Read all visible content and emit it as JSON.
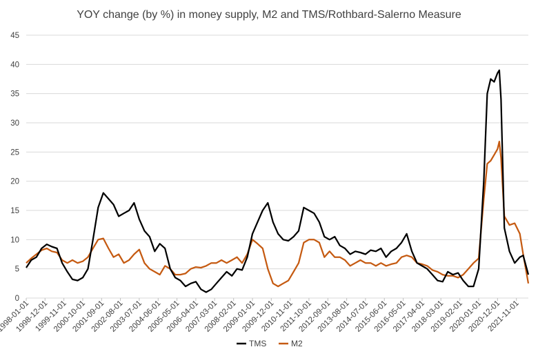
{
  "chart_data": {
    "type": "line",
    "title": "YOY change (by %) in money supply, M2 and TMS/Rothbard-Salerno Measure",
    "xlabel": "",
    "ylabel": "",
    "ylim": [
      0,
      45
    ],
    "y_ticks": [
      "0",
      "5",
      "10",
      "15",
      "20",
      "25",
      "30",
      "35",
      "40",
      "45"
    ],
    "x_range": [
      "1998-01-01",
      "2022-06-01"
    ],
    "x_tick_labels": [
      "1998-01-01",
      "1998-12-01",
      "1999-11-01",
      "2000-10-01",
      "2001-09-01",
      "2002-08-01",
      "2003-07-01",
      "2004-06-01",
      "2005-05-01",
      "2006-04-01",
      "2007-03-01",
      "2008-02-01",
      "2009-01-01",
      "2009-12-01",
      "2010-11-01",
      "2011-10-01",
      "2012-09-01",
      "2013-08-01",
      "2014-07-01",
      "2015-06-01",
      "2016-05-01",
      "2017-04-01",
      "2018-03-01",
      "2019-02-01",
      "2020-01-01",
      "2020-12-01",
      "2021-11-01"
    ],
    "grid": "horizontal",
    "legend_position": "bottom",
    "series": [
      {
        "name": "TMS",
        "color": "#000000",
        "points": [
          [
            "1998-01-01",
            5.2
          ],
          [
            "1998-04-01",
            6.5
          ],
          [
            "1998-07-01",
            7.0
          ],
          [
            "1998-10-01",
            8.5
          ],
          [
            "1999-01-01",
            9.2
          ],
          [
            "1999-04-01",
            8.8
          ],
          [
            "1999-07-01",
            8.5
          ],
          [
            "1999-10-01",
            6.0
          ],
          [
            "2000-01-01",
            4.5
          ],
          [
            "2000-04-01",
            3.2
          ],
          [
            "2000-07-01",
            3.0
          ],
          [
            "2000-10-01",
            3.5
          ],
          [
            "2001-01-01",
            5.0
          ],
          [
            "2001-04-01",
            10.0
          ],
          [
            "2001-07-01",
            15.5
          ],
          [
            "2001-10-01",
            18.0
          ],
          [
            "2002-01-01",
            17.0
          ],
          [
            "2002-04-01",
            16.0
          ],
          [
            "2002-07-01",
            14.0
          ],
          [
            "2002-10-01",
            14.5
          ],
          [
            "2003-01-01",
            15.0
          ],
          [
            "2003-04-01",
            16.3
          ],
          [
            "2003-07-01",
            13.5
          ],
          [
            "2003-10-01",
            11.5
          ],
          [
            "2004-01-01",
            10.5
          ],
          [
            "2004-04-01",
            8.0
          ],
          [
            "2004-07-01",
            9.3
          ],
          [
            "2004-10-01",
            8.5
          ],
          [
            "2005-01-01",
            5.0
          ],
          [
            "2005-04-01",
            3.5
          ],
          [
            "2005-07-01",
            3.0
          ],
          [
            "2005-10-01",
            2.0
          ],
          [
            "2006-01-01",
            2.5
          ],
          [
            "2006-04-01",
            2.8
          ],
          [
            "2006-07-01",
            1.5
          ],
          [
            "2006-10-01",
            1.0
          ],
          [
            "2007-01-01",
            1.5
          ],
          [
            "2007-04-01",
            2.5
          ],
          [
            "2007-07-01",
            3.5
          ],
          [
            "2007-10-01",
            4.5
          ],
          [
            "2008-01-01",
            3.8
          ],
          [
            "2008-04-01",
            5.0
          ],
          [
            "2008-07-01",
            4.8
          ],
          [
            "2008-10-01",
            7.0
          ],
          [
            "2009-01-01",
            11.0
          ],
          [
            "2009-04-01",
            13.0
          ],
          [
            "2009-07-01",
            15.0
          ],
          [
            "2009-10-01",
            16.3
          ],
          [
            "2010-01-01",
            13.0
          ],
          [
            "2010-04-01",
            11.0
          ],
          [
            "2010-07-01",
            10.0
          ],
          [
            "2010-10-01",
            9.8
          ],
          [
            "2011-01-01",
            10.5
          ],
          [
            "2011-04-01",
            11.5
          ],
          [
            "2011-07-01",
            15.5
          ],
          [
            "2011-10-01",
            15.0
          ],
          [
            "2012-01-01",
            14.5
          ],
          [
            "2012-04-01",
            13.0
          ],
          [
            "2012-07-01",
            10.5
          ],
          [
            "2012-10-01",
            10.0
          ],
          [
            "2013-01-01",
            10.5
          ],
          [
            "2013-04-01",
            9.0
          ],
          [
            "2013-07-01",
            8.5
          ],
          [
            "2013-10-01",
            7.5
          ],
          [
            "2014-01-01",
            8.0
          ],
          [
            "2014-04-01",
            7.8
          ],
          [
            "2014-07-01",
            7.5
          ],
          [
            "2014-10-01",
            8.2
          ],
          [
            "2015-01-01",
            8.0
          ],
          [
            "2015-04-01",
            8.5
          ],
          [
            "2015-07-01",
            7.0
          ],
          [
            "2015-10-01",
            8.0
          ],
          [
            "2016-01-01",
            8.5
          ],
          [
            "2016-04-01",
            9.5
          ],
          [
            "2016-07-01",
            11.0
          ],
          [
            "2016-10-01",
            8.0
          ],
          [
            "2017-01-01",
            6.0
          ],
          [
            "2017-04-01",
            5.5
          ],
          [
            "2017-07-01",
            5.0
          ],
          [
            "2017-10-01",
            4.0
          ],
          [
            "2018-01-01",
            3.0
          ],
          [
            "2018-04-01",
            2.8
          ],
          [
            "2018-07-01",
            4.5
          ],
          [
            "2018-10-01",
            4.0
          ],
          [
            "2019-01-01",
            4.3
          ],
          [
            "2019-04-01",
            3.0
          ],
          [
            "2019-07-01",
            2.0
          ],
          [
            "2019-10-01",
            2.0
          ],
          [
            "2020-01-01",
            5.0
          ],
          [
            "2020-04-01",
            20.0
          ],
          [
            "2020-06-01",
            35.0
          ],
          [
            "2020-08-01",
            37.5
          ],
          [
            "2020-10-01",
            37.0
          ],
          [
            "2020-12-01",
            38.5
          ],
          [
            "2021-01-01",
            39.0
          ],
          [
            "2021-02-01",
            34.0
          ],
          [
            "2021-04-01",
            12.0
          ],
          [
            "2021-07-01",
            8.0
          ],
          [
            "2021-10-01",
            6.0
          ],
          [
            "2022-01-01",
            7.0
          ],
          [
            "2022-03-01",
            7.3
          ],
          [
            "2022-06-01",
            4.0
          ]
        ]
      },
      {
        "name": "M2",
        "color": "#c55a11",
        "points": [
          [
            "1998-01-01",
            6.0
          ],
          [
            "1998-04-01",
            6.8
          ],
          [
            "1998-07-01",
            7.5
          ],
          [
            "1998-10-01",
            8.2
          ],
          [
            "1999-01-01",
            8.5
          ],
          [
            "1999-04-01",
            8.0
          ],
          [
            "1999-07-01",
            7.8
          ],
          [
            "1999-10-01",
            6.5
          ],
          [
            "2000-01-01",
            6.0
          ],
          [
            "2000-04-01",
            6.5
          ],
          [
            "2000-07-01",
            6.0
          ],
          [
            "2000-10-01",
            6.3
          ],
          [
            "2001-01-01",
            7.0
          ],
          [
            "2001-04-01",
            8.5
          ],
          [
            "2001-07-01",
            10.0
          ],
          [
            "2001-10-01",
            10.2
          ],
          [
            "2002-01-01",
            8.5
          ],
          [
            "2002-04-01",
            7.0
          ],
          [
            "2002-07-01",
            7.5
          ],
          [
            "2002-10-01",
            6.0
          ],
          [
            "2003-01-01",
            6.5
          ],
          [
            "2003-04-01",
            7.5
          ],
          [
            "2003-07-01",
            8.3
          ],
          [
            "2003-10-01",
            6.0
          ],
          [
            "2004-01-01",
            5.0
          ],
          [
            "2004-04-01",
            4.5
          ],
          [
            "2004-07-01",
            4.0
          ],
          [
            "2004-10-01",
            5.5
          ],
          [
            "2005-01-01",
            5.0
          ],
          [
            "2005-04-01",
            4.0
          ],
          [
            "2005-07-01",
            4.0
          ],
          [
            "2005-10-01",
            4.2
          ],
          [
            "2006-01-01",
            5.0
          ],
          [
            "2006-04-01",
            5.3
          ],
          [
            "2006-07-01",
            5.2
          ],
          [
            "2006-10-01",
            5.5
          ],
          [
            "2007-01-01",
            6.0
          ],
          [
            "2007-04-01",
            6.0
          ],
          [
            "2007-07-01",
            6.5
          ],
          [
            "2007-10-01",
            6.0
          ],
          [
            "2008-01-01",
            6.5
          ],
          [
            "2008-04-01",
            7.0
          ],
          [
            "2008-07-01",
            6.0
          ],
          [
            "2008-10-01",
            7.5
          ],
          [
            "2009-01-01",
            10.0
          ],
          [
            "2009-04-01",
            9.3
          ],
          [
            "2009-07-01",
            8.5
          ],
          [
            "2009-10-01",
            5.0
          ],
          [
            "2010-01-01",
            2.5
          ],
          [
            "2010-04-01",
            2.0
          ],
          [
            "2010-07-01",
            2.5
          ],
          [
            "2010-10-01",
            3.0
          ],
          [
            "2011-01-01",
            4.5
          ],
          [
            "2011-04-01",
            6.0
          ],
          [
            "2011-07-01",
            9.5
          ],
          [
            "2011-10-01",
            10.0
          ],
          [
            "2012-01-01",
            10.0
          ],
          [
            "2012-04-01",
            9.5
          ],
          [
            "2012-07-01",
            7.0
          ],
          [
            "2012-10-01",
            8.0
          ],
          [
            "2013-01-01",
            7.0
          ],
          [
            "2013-04-01",
            7.0
          ],
          [
            "2013-07-01",
            6.5
          ],
          [
            "2013-10-01",
            5.5
          ],
          [
            "2014-01-01",
            6.0
          ],
          [
            "2014-04-01",
            6.5
          ],
          [
            "2014-07-01",
            6.0
          ],
          [
            "2014-10-01",
            6.0
          ],
          [
            "2015-01-01",
            5.5
          ],
          [
            "2015-04-01",
            6.0
          ],
          [
            "2015-07-01",
            5.5
          ],
          [
            "2015-10-01",
            5.8
          ],
          [
            "2016-01-01",
            6.0
          ],
          [
            "2016-04-01",
            7.0
          ],
          [
            "2016-07-01",
            7.3
          ],
          [
            "2016-10-01",
            7.0
          ],
          [
            "2017-01-01",
            6.0
          ],
          [
            "2017-04-01",
            5.8
          ],
          [
            "2017-07-01",
            5.5
          ],
          [
            "2017-10-01",
            4.8
          ],
          [
            "2018-01-01",
            4.5
          ],
          [
            "2018-04-01",
            4.0
          ],
          [
            "2018-07-01",
            3.8
          ],
          [
            "2018-10-01",
            3.8
          ],
          [
            "2019-01-01",
            3.5
          ],
          [
            "2019-04-01",
            4.0
          ],
          [
            "2019-07-01",
            5.0
          ],
          [
            "2019-10-01",
            6.0
          ],
          [
            "2020-01-01",
            6.8
          ],
          [
            "2020-04-01",
            17.0
          ],
          [
            "2020-06-01",
            23.0
          ],
          [
            "2020-08-01",
            23.5
          ],
          [
            "2020-10-01",
            24.5
          ],
          [
            "2020-12-01",
            25.5
          ],
          [
            "2021-01-01",
            26.8
          ],
          [
            "2021-02-01",
            24.0
          ],
          [
            "2021-04-01",
            14.0
          ],
          [
            "2021-07-01",
            12.5
          ],
          [
            "2021-10-01",
            12.8
          ],
          [
            "2022-01-01",
            11.0
          ],
          [
            "2022-03-01",
            7.5
          ],
          [
            "2022-06-01",
            2.5
          ]
        ]
      }
    ]
  }
}
